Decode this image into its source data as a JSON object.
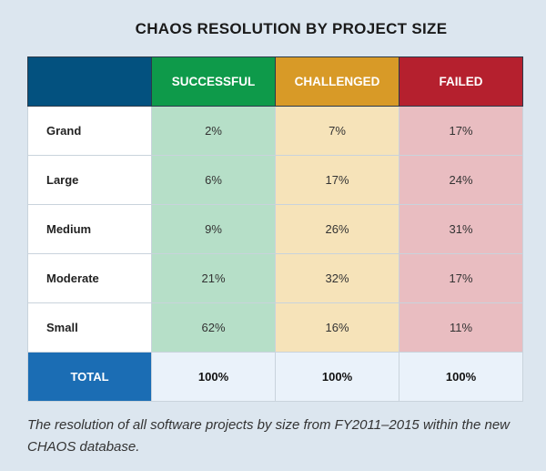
{
  "title": "CHAOS RESOLUTION BY PROJECT SIZE",
  "table": {
    "header": [
      "",
      "SUCCESSFUL",
      "CHALLENGED",
      "FAILED"
    ],
    "rows": [
      [
        "Grand",
        "2%",
        "7%",
        "17%"
      ],
      [
        "Large",
        "6%",
        "17%",
        "24%"
      ],
      [
        "Medium",
        "9%",
        "26%",
        "31%"
      ],
      [
        "Moderate",
        "21%",
        "32%",
        "17%"
      ],
      [
        "Small",
        "62%",
        "16%",
        "11%"
      ]
    ],
    "total": [
      "TOTAL",
      "100%",
      "100%",
      "100%"
    ]
  },
  "caption": "The resolution of all software projects by size from FY2011–2015 within the new CHAOS database."
}
